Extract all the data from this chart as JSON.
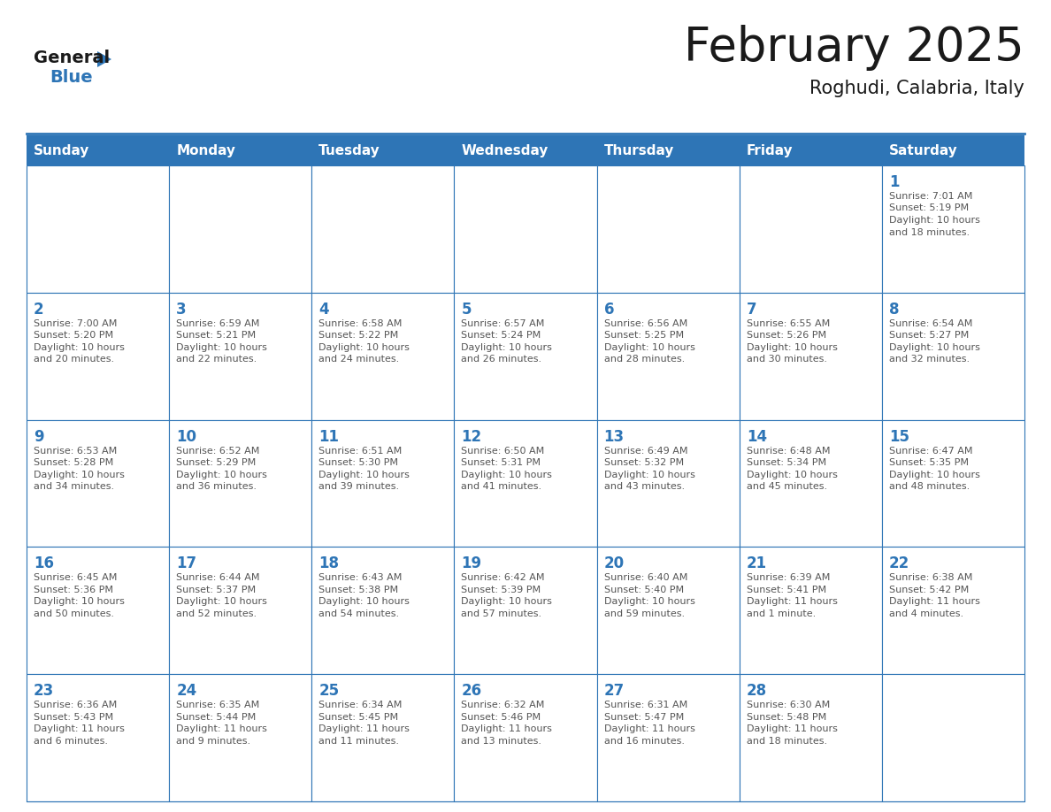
{
  "title": "February 2025",
  "subtitle": "Roghudi, Calabria, Italy",
  "header_bg": "#2E75B6",
  "header_text_color": "#FFFFFF",
  "cell_bg": "#FFFFFF",
  "cell_border_color": "#2E75B6",
  "day_number_color": "#2E75B6",
  "cell_text_color": "#555555",
  "days_of_week": [
    "Sunday",
    "Monday",
    "Tuesday",
    "Wednesday",
    "Thursday",
    "Friday",
    "Saturday"
  ],
  "logo_general_color": "#1a1a1a",
  "logo_blue_color": "#2E75B6",
  "title_fontsize": 38,
  "subtitle_fontsize": 15,
  "dow_fontsize": 11,
  "day_num_fontsize": 12,
  "cell_text_fontsize": 8,
  "calendar_data": [
    [
      null,
      null,
      null,
      null,
      null,
      null,
      {
        "day": 1,
        "sunrise": "7:01 AM",
        "sunset": "5:19 PM",
        "daylight": "10 hours\nand 18 minutes."
      }
    ],
    [
      {
        "day": 2,
        "sunrise": "7:00 AM",
        "sunset": "5:20 PM",
        "daylight": "10 hours\nand 20 minutes."
      },
      {
        "day": 3,
        "sunrise": "6:59 AM",
        "sunset": "5:21 PM",
        "daylight": "10 hours\nand 22 minutes."
      },
      {
        "day": 4,
        "sunrise": "6:58 AM",
        "sunset": "5:22 PM",
        "daylight": "10 hours\nand 24 minutes."
      },
      {
        "day": 5,
        "sunrise": "6:57 AM",
        "sunset": "5:24 PM",
        "daylight": "10 hours\nand 26 minutes."
      },
      {
        "day": 6,
        "sunrise": "6:56 AM",
        "sunset": "5:25 PM",
        "daylight": "10 hours\nand 28 minutes."
      },
      {
        "day": 7,
        "sunrise": "6:55 AM",
        "sunset": "5:26 PM",
        "daylight": "10 hours\nand 30 minutes."
      },
      {
        "day": 8,
        "sunrise": "6:54 AM",
        "sunset": "5:27 PM",
        "daylight": "10 hours\nand 32 minutes."
      }
    ],
    [
      {
        "day": 9,
        "sunrise": "6:53 AM",
        "sunset": "5:28 PM",
        "daylight": "10 hours\nand 34 minutes."
      },
      {
        "day": 10,
        "sunrise": "6:52 AM",
        "sunset": "5:29 PM",
        "daylight": "10 hours\nand 36 minutes."
      },
      {
        "day": 11,
        "sunrise": "6:51 AM",
        "sunset": "5:30 PM",
        "daylight": "10 hours\nand 39 minutes."
      },
      {
        "day": 12,
        "sunrise": "6:50 AM",
        "sunset": "5:31 PM",
        "daylight": "10 hours\nand 41 minutes."
      },
      {
        "day": 13,
        "sunrise": "6:49 AM",
        "sunset": "5:32 PM",
        "daylight": "10 hours\nand 43 minutes."
      },
      {
        "day": 14,
        "sunrise": "6:48 AM",
        "sunset": "5:34 PM",
        "daylight": "10 hours\nand 45 minutes."
      },
      {
        "day": 15,
        "sunrise": "6:47 AM",
        "sunset": "5:35 PM",
        "daylight": "10 hours\nand 48 minutes."
      }
    ],
    [
      {
        "day": 16,
        "sunrise": "6:45 AM",
        "sunset": "5:36 PM",
        "daylight": "10 hours\nand 50 minutes."
      },
      {
        "day": 17,
        "sunrise": "6:44 AM",
        "sunset": "5:37 PM",
        "daylight": "10 hours\nand 52 minutes."
      },
      {
        "day": 18,
        "sunrise": "6:43 AM",
        "sunset": "5:38 PM",
        "daylight": "10 hours\nand 54 minutes."
      },
      {
        "day": 19,
        "sunrise": "6:42 AM",
        "sunset": "5:39 PM",
        "daylight": "10 hours\nand 57 minutes."
      },
      {
        "day": 20,
        "sunrise": "6:40 AM",
        "sunset": "5:40 PM",
        "daylight": "10 hours\nand 59 minutes."
      },
      {
        "day": 21,
        "sunrise": "6:39 AM",
        "sunset": "5:41 PM",
        "daylight": "11 hours\nand 1 minute."
      },
      {
        "day": 22,
        "sunrise": "6:38 AM",
        "sunset": "5:42 PM",
        "daylight": "11 hours\nand 4 minutes."
      }
    ],
    [
      {
        "day": 23,
        "sunrise": "6:36 AM",
        "sunset": "5:43 PM",
        "daylight": "11 hours\nand 6 minutes."
      },
      {
        "day": 24,
        "sunrise": "6:35 AM",
        "sunset": "5:44 PM",
        "daylight": "11 hours\nand 9 minutes."
      },
      {
        "day": 25,
        "sunrise": "6:34 AM",
        "sunset": "5:45 PM",
        "daylight": "11 hours\nand 11 minutes."
      },
      {
        "day": 26,
        "sunrise": "6:32 AM",
        "sunset": "5:46 PM",
        "daylight": "11 hours\nand 13 minutes."
      },
      {
        "day": 27,
        "sunrise": "6:31 AM",
        "sunset": "5:47 PM",
        "daylight": "11 hours\nand 16 minutes."
      },
      {
        "day": 28,
        "sunrise": "6:30 AM",
        "sunset": "5:48 PM",
        "daylight": "11 hours\nand 18 minutes."
      },
      null
    ]
  ]
}
